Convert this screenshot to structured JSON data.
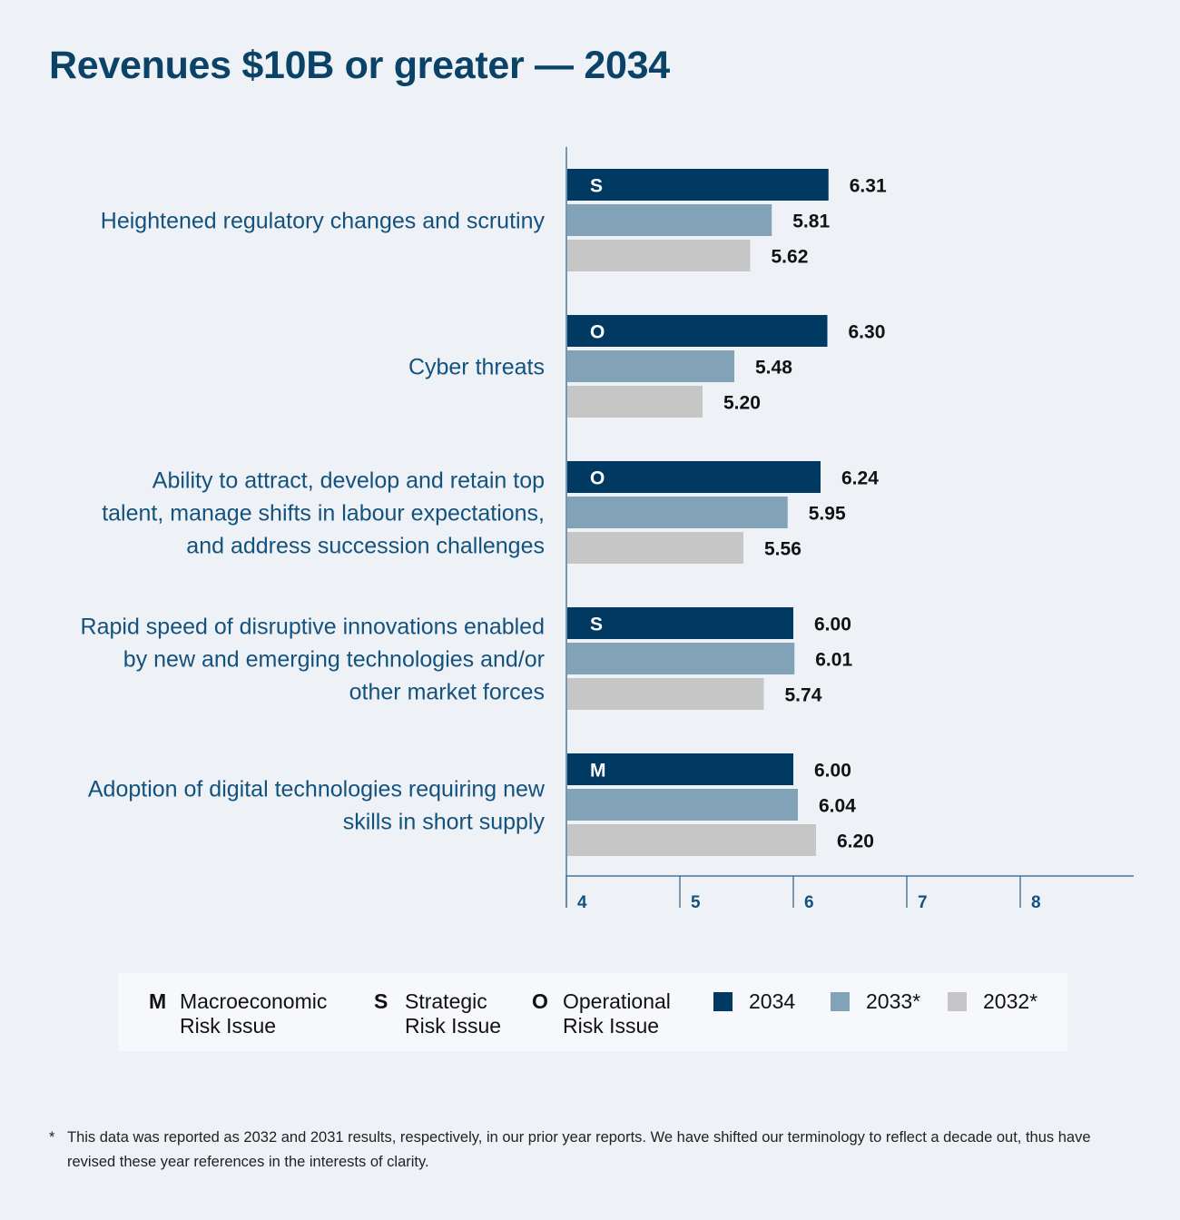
{
  "title": "Revenues $10B or greater — 2034",
  "chart_data": {
    "type": "bar",
    "orientation": "horizontal",
    "title": "Revenues $10B or greater — 2034",
    "xlim": [
      4,
      9
    ],
    "xticks": [
      "4",
      "5",
      "6",
      "7",
      "8"
    ],
    "categories": [
      {
        "lines": [
          "Heightened regulatory changes and scrutiny"
        ],
        "type": "S"
      },
      {
        "lines": [
          "Cyber threats"
        ],
        "type": "O"
      },
      {
        "lines": [
          "Ability to attract, develop and retain top",
          "talent, manage shifts in labour expectations,",
          "and address succession challenges"
        ],
        "type": "O"
      },
      {
        "lines": [
          "Rapid speed of disruptive innovations enabled",
          "by new and emerging technologies and/or",
          "other market forces"
        ],
        "type": "S"
      },
      {
        "lines": [
          "Adoption of digital technologies requiring new",
          "skills in short supply"
        ],
        "type": "M"
      }
    ],
    "series": [
      {
        "name": "2034",
        "color": "#003a63",
        "values": [
          6.31,
          6.3,
          6.24,
          6.0,
          6.0
        ],
        "labels": [
          "6.31",
          "6.30",
          "6.24",
          "6.00",
          "6.00"
        ]
      },
      {
        "name": "2033*",
        "color": "#82a2b7",
        "values": [
          5.81,
          5.48,
          5.95,
          6.01,
          6.04
        ],
        "labels": [
          "5.81",
          "5.48",
          "5.95",
          "6.01",
          "6.04"
        ]
      },
      {
        "name": "2032*",
        "color": "#c6c6c6",
        "values": [
          5.62,
          5.2,
          5.56,
          5.74,
          6.2
        ],
        "labels": [
          "5.62",
          "5.20",
          "5.56",
          "5.74",
          "6.20"
        ]
      }
    ]
  },
  "legend": {
    "types": [
      {
        "letter": "M",
        "line1": "Macroeconomic",
        "line2": "Risk Issue"
      },
      {
        "letter": "S",
        "line1": "Strategic",
        "line2": "Risk Issue"
      },
      {
        "letter": "O",
        "line1": "Operational",
        "line2": "Risk Issue"
      }
    ],
    "years": [
      {
        "label": "2034",
        "color": "#003a63"
      },
      {
        "label": "2033*",
        "color": "#82a2b7"
      },
      {
        "label": "2032*",
        "color": "#c6c6c6"
      }
    ]
  },
  "footnote": {
    "mark": "*",
    "text": "This data was reported as 2032 and 2031 results, respectively, in our prior year reports. We have shifted our terminology to reflect a decade out, thus have revised these year references in the interests of clarity."
  }
}
